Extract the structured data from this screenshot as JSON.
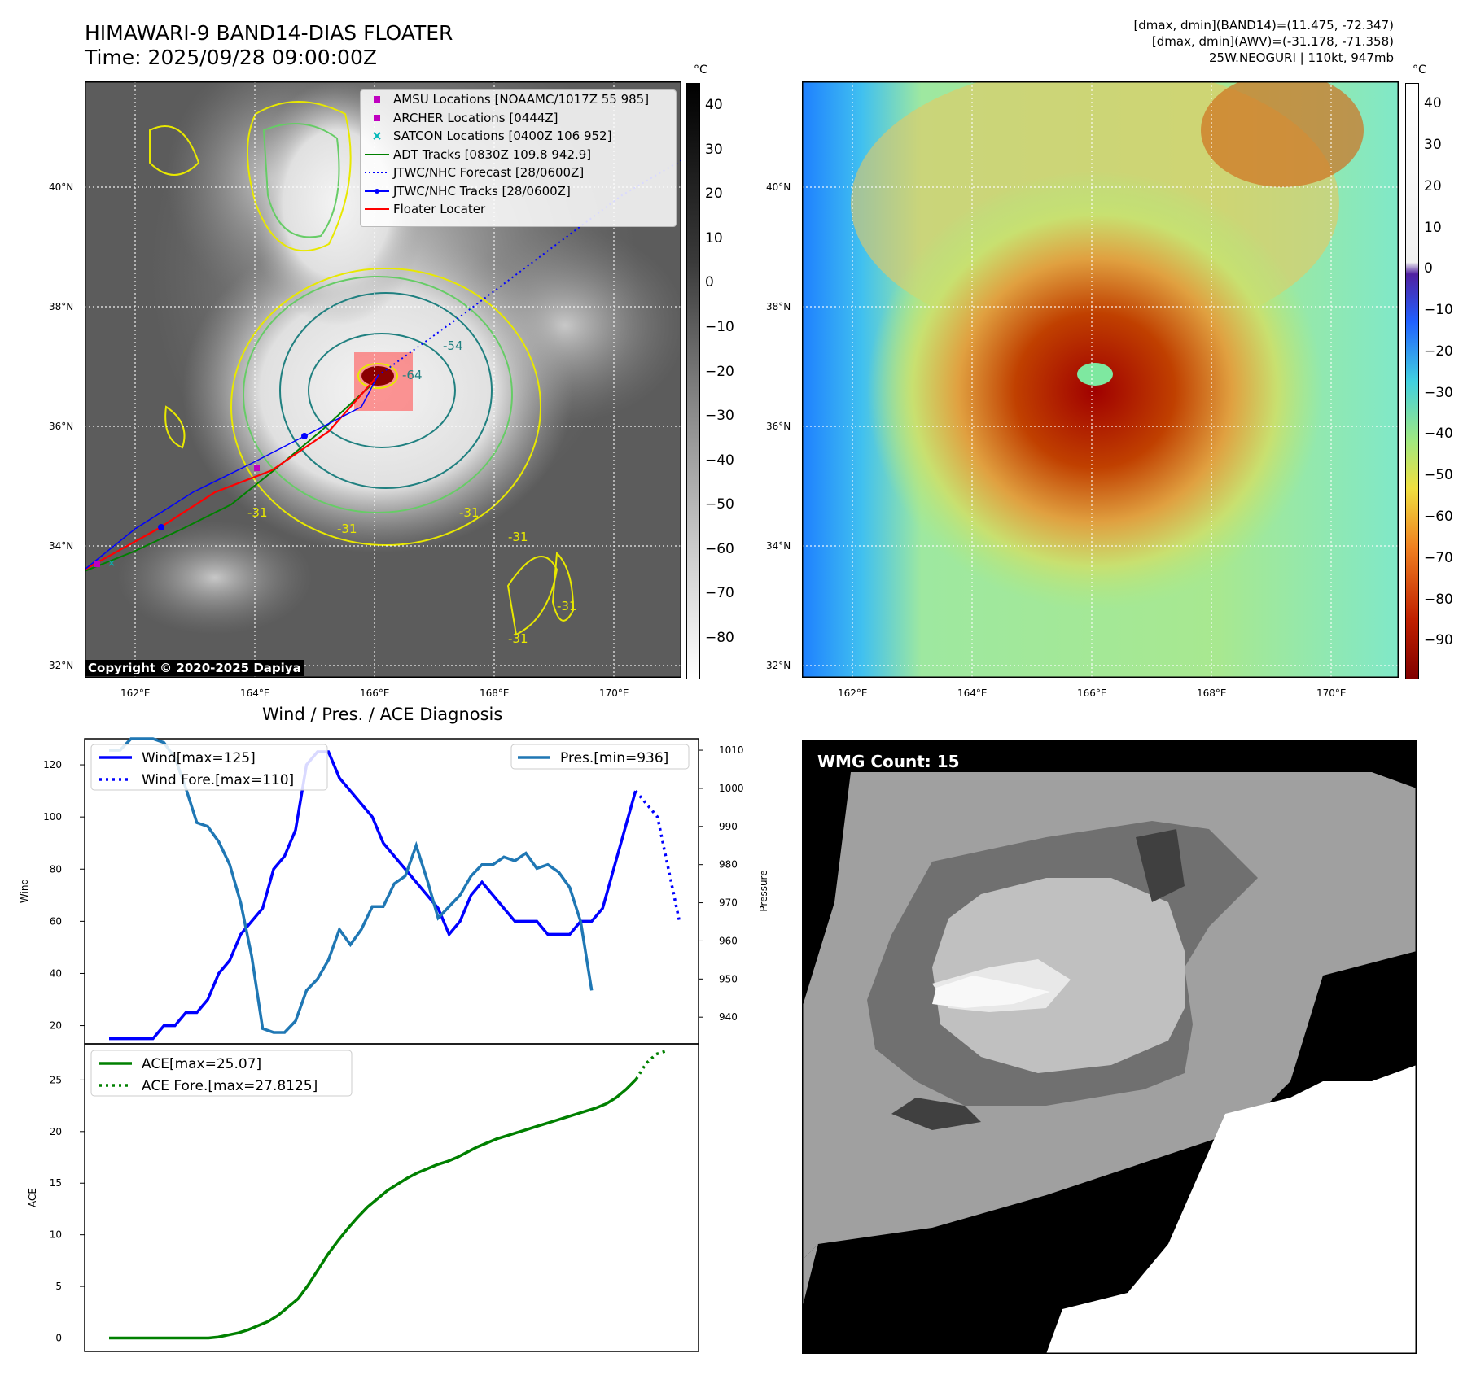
{
  "header": {
    "title_line1": "HIMAWARI-9 BAND14-DIAS FLOATER",
    "title_line2": "Time: 2025/09/28 09:00:00Z",
    "right_line1": "[dmax, dmin](BAND14)=(11.475, -72.347)",
    "right_line2": "[dmax, dmin](AWV)=(-31.178, -71.358)",
    "right_line3": "25W.NEOGURI | 110kt, 947mb"
  },
  "map": {
    "lat_labels": [
      "40°N",
      "38°N",
      "36°N",
      "34°N",
      "32°N"
    ],
    "lon_labels": [
      "162°E",
      "164°E",
      "166°E",
      "168°E",
      "170°E"
    ],
    "contour_labels": [
      "-64",
      "-54",
      "-31",
      "-31",
      "-31",
      "-31",
      "-31",
      "-31"
    ],
    "copyright": "Copyright © 2020-2025 Dapiya"
  },
  "legend": [
    {
      "label": "AMSU Locations [NOAAMC/1017Z 55 985]",
      "symbol": "square",
      "color": "#c000c0"
    },
    {
      "label": "ARCHER Locations [0444Z]",
      "symbol": "square",
      "color": "#c000c0"
    },
    {
      "label": "SATCON Locations [0400Z 106 952]",
      "symbol": "x",
      "color": "#00b8b8"
    },
    {
      "label": "ADT Tracks [0830Z 109.8 942.9]",
      "symbol": "line",
      "color": "#008000"
    },
    {
      "label": "JTWC/NHC Forecast [28/0600Z]",
      "symbol": "dotted",
      "color": "#0000ff"
    },
    {
      "label": "JTWC/NHC Tracks [28/0600Z]",
      "symbol": "line-dot",
      "color": "#0000ff"
    },
    {
      "label": "Floater Locater",
      "symbol": "line",
      "color": "#ff0000"
    }
  ],
  "colorbar_left": {
    "unit": "°C",
    "ticks": [
      "40",
      "30",
      "20",
      "10",
      "0",
      "−10",
      "−20",
      "−30",
      "−40",
      "−50",
      "−60",
      "−70",
      "−80"
    ]
  },
  "colorbar_right": {
    "unit": "°C",
    "ticks": [
      "40",
      "30",
      "20",
      "10",
      "0",
      "−10",
      "−20",
      "−30",
      "−40",
      "−50",
      "−60",
      "−70",
      "−80",
      "−90"
    ]
  },
  "wmg": {
    "label": "WMG Count: 15"
  },
  "chart_data": [
    {
      "type": "line",
      "title": "Wind / Pres. / ACE Diagnosis",
      "ylabel": "Wind",
      "ylim": [
        13,
        130
      ],
      "yticks": [
        20,
        40,
        60,
        80,
        100,
        120
      ],
      "series": [
        {
          "name": "Wind[max=125]",
          "color": "#0000ff",
          "style": "solid",
          "values": [
            15,
            15,
            15,
            15,
            15,
            20,
            20,
            25,
            25,
            30,
            40,
            45,
            55,
            60,
            65,
            80,
            85,
            95,
            120,
            125,
            125,
            115,
            110,
            105,
            100,
            90,
            85,
            80,
            75,
            70,
            65,
            55,
            60,
            70,
            75,
            70,
            65,
            60,
            60,
            60,
            55,
            55,
            55,
            60,
            60,
            65,
            80,
            95,
            110
          ]
        },
        {
          "name": "Wind Fore.[max=110]",
          "color": "#0000ff",
          "style": "dotted",
          "values": [
            110,
            105,
            100,
            80,
            60
          ],
          "x_offset": 48
        }
      ],
      "y2label": "Pressure",
      "y2lim": [
        933,
        1013
      ],
      "y2ticks": [
        940,
        950,
        960,
        970,
        980,
        990,
        1000,
        1010
      ],
      "y2series": [
        {
          "name": "Pres.[min=936]",
          "color": "#1f77b4",
          "values": [
            1010,
            1010,
            1013,
            1013,
            1013,
            1012,
            1008,
            1000,
            991,
            990,
            986,
            980,
            970,
            956,
            937,
            936,
            936,
            939,
            947,
            950,
            955,
            963,
            959,
            963,
            969,
            969,
            975,
            977,
            985,
            976,
            966,
            969,
            972,
            977,
            980,
            980,
            982,
            981,
            983,
            979,
            980,
            978,
            974,
            965,
            947
          ]
        }
      ]
    },
    {
      "type": "line",
      "ylabel": "ACE",
      "ylim": [
        -1.3,
        28.5
      ],
      "yticks": [
        0,
        5,
        10,
        15,
        20,
        25
      ],
      "series": [
        {
          "name": "ACE[max=25.07]",
          "color": "#008000",
          "style": "solid",
          "values": [
            0,
            0,
            0,
            0,
            0,
            0,
            0,
            0,
            0,
            0,
            0,
            0.1,
            0.3,
            0.5,
            0.8,
            1.2,
            1.6,
            2.2,
            3.0,
            3.8,
            5.1,
            6.6,
            8.1,
            9.4,
            10.6,
            11.7,
            12.7,
            13.5,
            14.3,
            14.9,
            15.5,
            16.0,
            16.4,
            16.8,
            17.1,
            17.5,
            18.0,
            18.5,
            18.9,
            19.3,
            19.6,
            19.9,
            20.2,
            20.5,
            20.8,
            21.1,
            21.4,
            21.7,
            22.0,
            22.3,
            22.7,
            23.3,
            24.1,
            25.07
          ]
        },
        {
          "name": "ACE Fore.[max=27.8125]",
          "color": "#008000",
          "style": "dotted",
          "values": [
            25.07,
            26.6,
            27.5,
            27.8125
          ],
          "x_offset": 53
        }
      ]
    }
  ]
}
